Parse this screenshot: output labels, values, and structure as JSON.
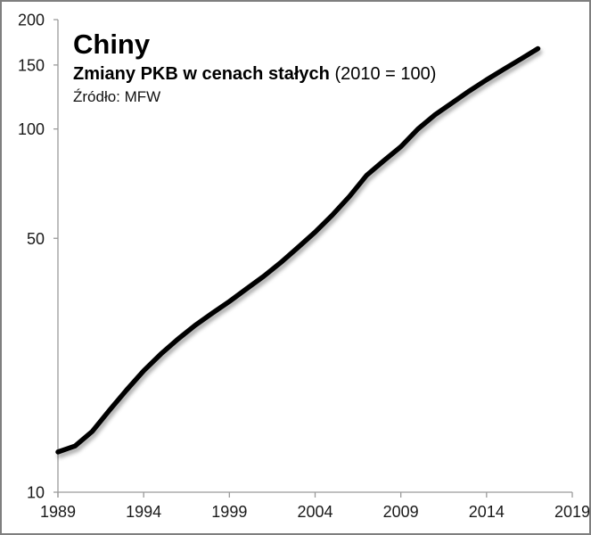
{
  "chart_data": {
    "type": "line",
    "title": "Chiny",
    "subtitle": "Zmiany PKB w cenach stałych",
    "subtitle_note": "(2010 = 100)",
    "source": "Źródło: MFW",
    "y_scale": "log",
    "xlim": [
      1989,
      2019
    ],
    "ylim": [
      10,
      200
    ],
    "x_ticks": [
      1989,
      1994,
      1999,
      2004,
      2009,
      2014,
      2019
    ],
    "y_ticks": [
      200,
      150,
      100,
      50,
      10
    ],
    "grid": false,
    "legend": "none",
    "line_color": "#000000",
    "axis_color": "#9a9a9a",
    "text_color": "#1a1a1a",
    "x": [
      1989,
      1990,
      1991,
      1992,
      1993,
      1994,
      1995,
      1996,
      1997,
      1998,
      1999,
      2000,
      2001,
      2002,
      2003,
      2004,
      2005,
      2006,
      2007,
      2008,
      2009,
      2010,
      2011,
      2012,
      2013,
      2014,
      2015,
      2016,
      2017
    ],
    "values": [
      12.9,
      13.4,
      14.7,
      16.8,
      19.1,
      21.6,
      24.0,
      26.4,
      28.8,
      31.1,
      33.5,
      36.3,
      39.3,
      42.9,
      47.2,
      52.0,
      57.9,
      65.2,
      74.5,
      81.7,
      89.4,
      100.0,
      109.5,
      118.1,
      127.3,
      136.6,
      146.0,
      155.8,
      166.4
    ]
  }
}
